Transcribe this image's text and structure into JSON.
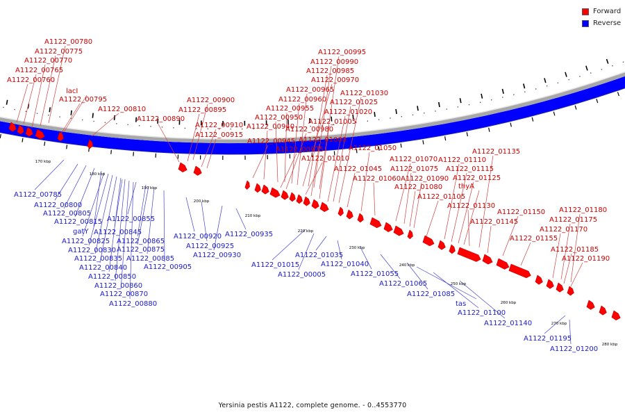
{
  "legend": {
    "forward_label": "Forward",
    "reverse_label": "Reverse",
    "forward_color": "#ff0000",
    "reverse_color": "#0000ff"
  },
  "caption": "Yersinia pestis A1122, complete genome. - 0..4553770",
  "scale_labels": [
    "170 kbp",
    "180 kbp",
    "190 kbp",
    "200 kbp",
    "210 kbp",
    "220 kbp",
    "230 kbp",
    "240 kbp",
    "250 kbp",
    "260 kbp",
    "270 kbp",
    "280 kbp"
  ],
  "forward_labels": [
    "A1122_00780",
    "A1122_00775",
    "A1122_00770",
    "A1122_00765",
    "A1122_00760",
    "lacI",
    "A1122_00795",
    "A1122_00810",
    "A1122_00900",
    "A1122_00895",
    "A1122_00890",
    "A1122_00910",
    "A1122_00915",
    "A1122_00995",
    "A1122_00990",
    "A1122_00985",
    "A1122_00970",
    "A1122_00965",
    "A1122_00960",
    "A1122_00955",
    "A1122_00950",
    "A1122_00940",
    "A1122_00980",
    "A1122_00945",
    "A1122_00975",
    "A1122_01030",
    "A1122_01025",
    "A1122_01020",
    "A1122_01005",
    "A1122_01000",
    "A1122_01010",
    "A1122_01050",
    "A1122_01045",
    "A1122_01070",
    "A1122_01075",
    "A1122_01060",
    "A1122_01090",
    "A1122_01080",
    "A1122_01135",
    "A1122_01110",
    "A1122_01115",
    "A1122_01125",
    "thyA",
    "A1122_01105",
    "A1122_01130",
    "A1122_01150",
    "A1122_01145",
    "A1122_01155",
    "A1122_01180",
    "A1122_01175",
    "A1122_01170",
    "A1122_01185",
    "A1122_01190"
  ],
  "reverse_labels": [
    "A1122_00785",
    "A1122_00800",
    "A1122_00805",
    "A1122_00815",
    "gatY",
    "A1122_00825",
    "A1122_00830",
    "A1122_00835",
    "A1122_00840",
    "A1122_00850",
    "A1122_00860",
    "A1122_00870",
    "A1122_00880",
    "A1122_00855",
    "A1122_00845",
    "A1122_00865",
    "A1122_00875",
    "A1122_00885",
    "A1122_00905",
    "A1122_00920",
    "A1122_00925",
    "A1122_00930",
    "A1122_00935",
    "A1122_01015",
    "A1122_00005",
    "A1122_01035",
    "A1122_01040",
    "A1122_01055",
    "A1122_01065",
    "A1122_01085",
    "tas",
    "A1122_01100",
    "A1122_01140",
    "A1122_01195",
    "A1122_01200"
  ]
}
